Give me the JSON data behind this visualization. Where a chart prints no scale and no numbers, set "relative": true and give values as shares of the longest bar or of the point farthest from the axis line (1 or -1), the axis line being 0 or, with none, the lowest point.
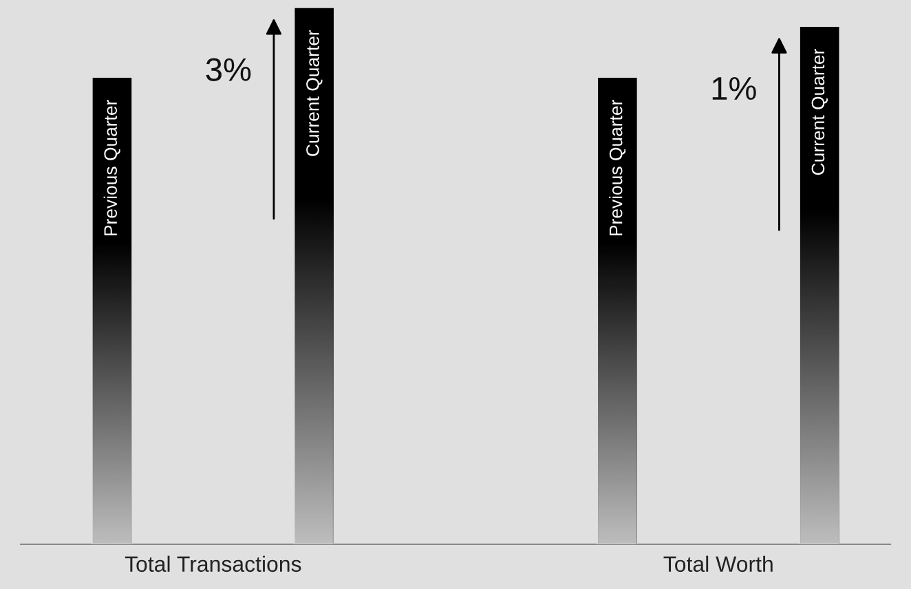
{
  "chart_data": {
    "type": "bar",
    "relative": true,
    "categories": [
      "Total Transactions",
      "Total Worth"
    ],
    "series": [
      {
        "name": "Previous Quarter",
        "color": "#000000",
        "values": [
          0.87,
          0.87
        ]
      },
      {
        "name": "Current Quarter",
        "color": "#000000",
        "values": [
          1,
          0.965
        ]
      }
    ],
    "annotations": [
      "3%",
      "1%"
    ],
    "grid": false,
    "legend": false
  }
}
